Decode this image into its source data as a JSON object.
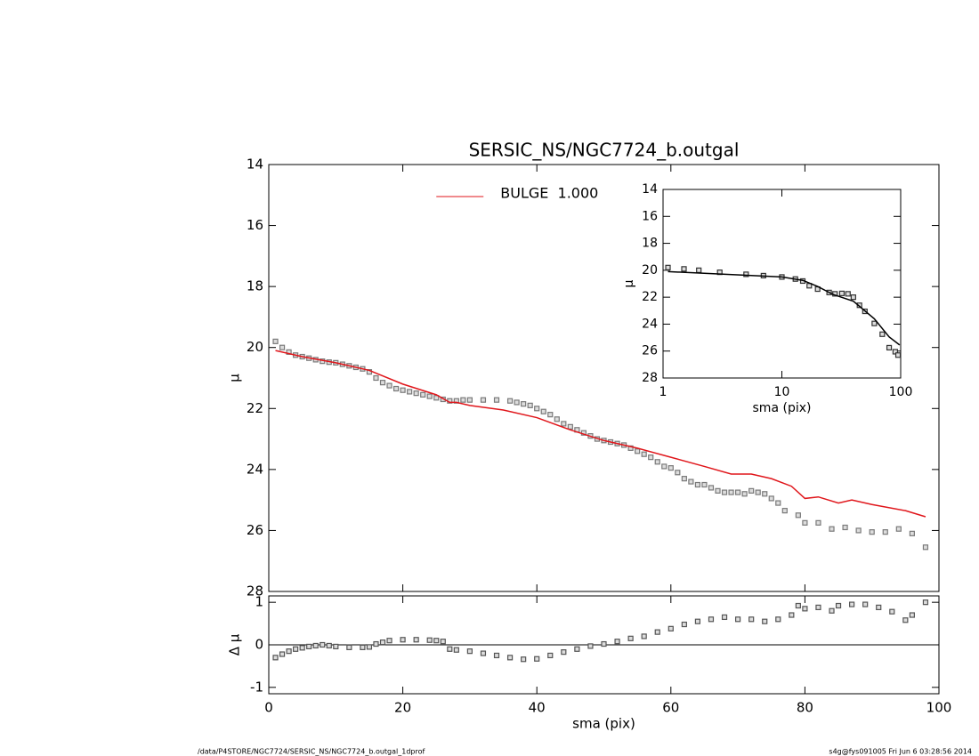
{
  "chart_data": [
    {
      "type": "scatter",
      "title": "SERSIC_NS/NGC7724_b.outgal",
      "y_label": "μ",
      "xlim": [
        0,
        100
      ],
      "xticks": [
        0,
        20,
        40,
        60,
        80,
        100
      ],
      "xtick_labels": false,
      "ylim": [
        28,
        14
      ],
      "yticks": [
        14,
        16,
        18,
        20,
        22,
        24,
        26,
        28
      ],
      "legend": "top",
      "series": [
        {
          "mode": "markers",
          "color": "#7a7a7a",
          "x": [
            1,
            2,
            3,
            4,
            5,
            6,
            7,
            8,
            9,
            10,
            11,
            12,
            13,
            14,
            15,
            16,
            17,
            18,
            19,
            20,
            21,
            22,
            23,
            24,
            25,
            26,
            27,
            28,
            29,
            30,
            32,
            34,
            36,
            37,
            38,
            39,
            40,
            41,
            42,
            43,
            44,
            45,
            46,
            47,
            48,
            49,
            50,
            51,
            52,
            53,
            54,
            55,
            56,
            57,
            58,
            59,
            60,
            61,
            62,
            63,
            64,
            65,
            66,
            67,
            68,
            69,
            70,
            71,
            72,
            73,
            74,
            75,
            76,
            77,
            79,
            80,
            82,
            84,
            86,
            88,
            90,
            92,
            94,
            96,
            98
          ],
          "values": [
            19.8,
            20.0,
            20.15,
            20.25,
            20.3,
            20.35,
            20.4,
            20.45,
            20.48,
            20.5,
            20.55,
            20.6,
            20.65,
            20.7,
            20.8,
            21.0,
            21.15,
            21.25,
            21.35,
            21.4,
            21.45,
            21.5,
            21.55,
            21.6,
            21.65,
            21.7,
            21.75,
            21.75,
            21.72,
            21.72,
            21.72,
            21.72,
            21.75,
            21.8,
            21.85,
            21.9,
            22.0,
            22.1,
            22.2,
            22.35,
            22.5,
            22.6,
            22.7,
            22.8,
            22.9,
            23.0,
            23.05,
            23.1,
            23.15,
            23.2,
            23.3,
            23.4,
            23.5,
            23.6,
            23.75,
            23.9,
            23.95,
            24.1,
            24.3,
            24.4,
            24.5,
            24.5,
            24.6,
            24.7,
            24.75,
            24.75,
            24.75,
            24.8,
            24.7,
            24.75,
            24.8,
            24.95,
            25.1,
            25.35,
            25.5,
            25.75,
            25.75,
            25.95,
            25.9,
            26.0,
            26.05,
            26.05,
            25.95,
            26.1,
            26.55
          ]
        },
        {
          "mode": "lines",
          "name": "BULGE  1.000",
          "color": "#e0161b",
          "x": [
            1,
            5,
            10,
            15,
            20,
            25,
            27,
            28,
            30,
            35,
            40,
            45,
            50,
            55,
            60,
            65,
            69,
            72,
            75,
            78,
            80,
            82,
            85,
            87,
            90,
            95,
            98
          ],
          "values": [
            20.1,
            20.3,
            20.5,
            20.75,
            21.2,
            21.55,
            21.8,
            21.8,
            21.9,
            22.05,
            22.3,
            22.7,
            23.05,
            23.3,
            23.6,
            23.9,
            24.15,
            24.15,
            24.3,
            24.55,
            24.95,
            24.9,
            25.1,
            25.0,
            25.15,
            25.35,
            25.55
          ]
        }
      ]
    },
    {
      "type": "scatter",
      "y_label": "Δ μ",
      "x_label": "sma (pix)",
      "xlim": [
        0,
        100
      ],
      "xticks": [
        0,
        20,
        40,
        60,
        80,
        100
      ],
      "xtick_labels": true,
      "ylim": [
        -1.15,
        1.15
      ],
      "yticks": [
        -1,
        0,
        1
      ],
      "zero_line": true,
      "series": [
        {
          "mode": "markers",
          "color": "#555555",
          "x": [
            1,
            2,
            3,
            4,
            5,
            6,
            7,
            8,
            9,
            10,
            12,
            14,
            15,
            16,
            17,
            18,
            20,
            22,
            24,
            25,
            26,
            27,
            28,
            30,
            32,
            34,
            36,
            38,
            40,
            42,
            44,
            46,
            48,
            50,
            52,
            54,
            56,
            58,
            60,
            62,
            64,
            66,
            68,
            70,
            72,
            74,
            76,
            78,
            79,
            80,
            82,
            84,
            85,
            87,
            89,
            91,
            93,
            95,
            96,
            98
          ],
          "values": [
            -0.3,
            -0.22,
            -0.15,
            -0.1,
            -0.07,
            -0.04,
            -0.02,
            0,
            -0.02,
            -0.04,
            -0.06,
            -0.06,
            -0.05,
            0.02,
            0.06,
            0.1,
            0.12,
            0.12,
            0.11,
            0.1,
            0.08,
            -0.1,
            -0.12,
            -0.15,
            -0.2,
            -0.25,
            -0.3,
            -0.34,
            -0.33,
            -0.25,
            -0.17,
            -0.1,
            -0.03,
            0.02,
            0.08,
            0.15,
            0.2,
            0.3,
            0.38,
            0.48,
            0.55,
            0.6,
            0.65,
            0.6,
            0.6,
            0.55,
            0.6,
            0.7,
            0.92,
            0.85,
            0.88,
            0.8,
            0.92,
            0.95,
            0.95,
            0.88,
            0.78,
            0.58,
            0.7,
            1.0
          ]
        }
      ]
    },
    {
      "type": "scatter",
      "y_label": "μ",
      "x_label": "sma (pix)",
      "xscale": "log",
      "xlim": [
        1,
        100
      ],
      "xticks": [
        1,
        10,
        100
      ],
      "xtick_labels": true,
      "ylim": [
        28,
        14
      ],
      "yticks": [
        14,
        16,
        18,
        20,
        22,
        24,
        26,
        28
      ],
      "series": [
        {
          "mode": "markers",
          "color": "#333333",
          "x": [
            1.1,
            1.5,
            2,
            3,
            5,
            7,
            10,
            13,
            15,
            17,
            20,
            25,
            28,
            32,
            36,
            40,
            45,
            50,
            60,
            70,
            80,
            90,
            95
          ],
          "values": [
            19.8,
            19.9,
            20.0,
            20.15,
            20.3,
            20.4,
            20.5,
            20.65,
            20.8,
            21.15,
            21.4,
            21.65,
            21.75,
            21.72,
            21.75,
            22.0,
            22.6,
            23.05,
            23.95,
            24.75,
            25.75,
            26.05,
            26.3
          ]
        },
        {
          "mode": "lines",
          "color": "#000000",
          "x": [
            1.1,
            10,
            15,
            20,
            27,
            40,
            60,
            80,
            98
          ],
          "values": [
            20.1,
            20.5,
            20.75,
            21.2,
            21.8,
            22.3,
            23.6,
            24.95,
            25.55
          ]
        }
      ]
    }
  ],
  "footer": {
    "left": "/data/P4STORE/NGC7724/SERSIC_NS/NGC7724_b.outgal_1dprof",
    "right": "s4g@fys091005  Fri Jun  6 03:28:56 2014"
  }
}
